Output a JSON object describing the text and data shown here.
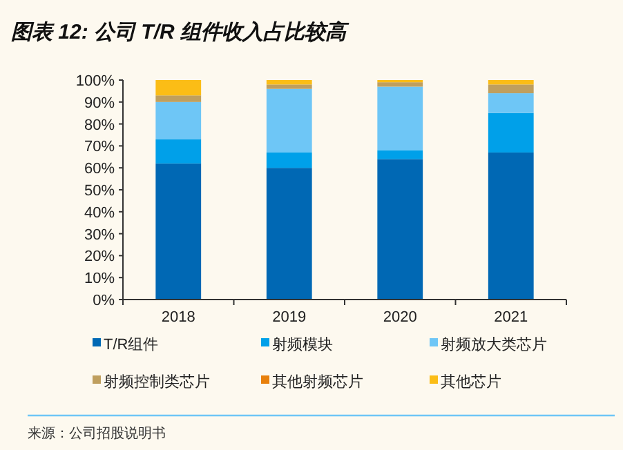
{
  "chart_data": {
    "type": "bar",
    "stacked": true,
    "title": "图表 12: 公司 T/R 组件收入占比较高",
    "categories": [
      "2018",
      "2019",
      "2020",
      "2021"
    ],
    "series": [
      {
        "name": "T/R组件",
        "color": "#0068b4",
        "values": [
          62,
          60,
          64,
          67
        ]
      },
      {
        "name": "射频模块",
        "color": "#00a0e9",
        "values": [
          11,
          7,
          4,
          18
        ]
      },
      {
        "name": "射频放大类芯片",
        "color": "#6ec6f6",
        "values": [
          17,
          29,
          29,
          9
        ]
      },
      {
        "name": "射频控制类芯片",
        "color": "#bf9f5e",
        "values": [
          3,
          2,
          2,
          4
        ]
      },
      {
        "name": "其他射频芯片",
        "color": "#e8800c",
        "values": [
          0,
          0,
          0,
          0
        ]
      },
      {
        "name": "其他芯片",
        "color": "#fbbd16",
        "values": [
          7,
          2,
          1,
          2
        ]
      }
    ],
    "ylim": [
      0,
      100
    ],
    "yticks": [
      {
        "value": 0,
        "label": "0%"
      },
      {
        "value": 10,
        "label": "10%"
      },
      {
        "value": 20,
        "label": "20%"
      },
      {
        "value": 30,
        "label": "30%"
      },
      {
        "value": 40,
        "label": "40%"
      },
      {
        "value": 50,
        "label": "50%"
      },
      {
        "value": 60,
        "label": "60%"
      },
      {
        "value": 70,
        "label": "70%"
      },
      {
        "value": 80,
        "label": "80%"
      },
      {
        "value": 90,
        "label": "90%"
      },
      {
        "value": 100,
        "label": "100%"
      }
    ],
    "grid": false,
    "legend": "bottom",
    "annotations": [
      "来源：公司招股说明书"
    ]
  }
}
